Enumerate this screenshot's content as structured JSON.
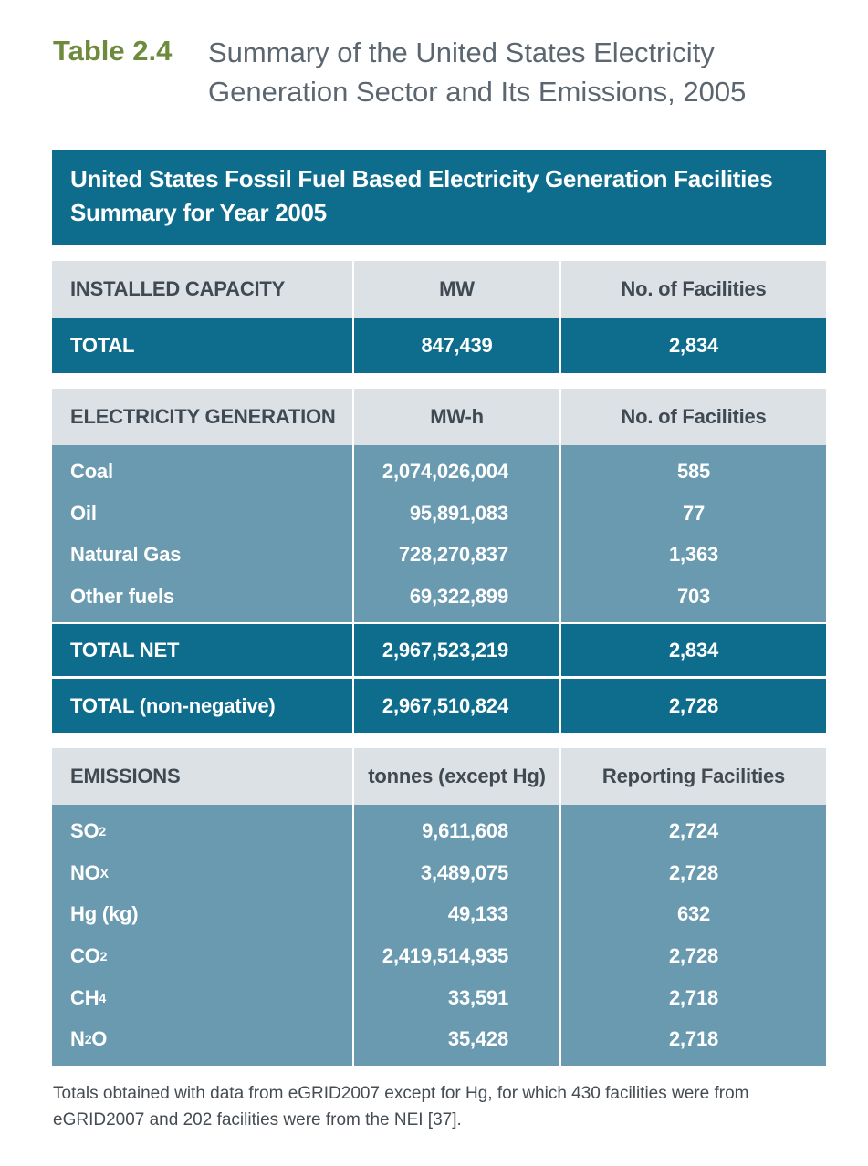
{
  "caption": {
    "label": "Table 2.4",
    "title": "Summary of the United States Electricity Generation Sector and Its Emissions, 2005"
  },
  "banner": "United States Fossil Fuel Based Electricity Generation Facilities Summary for Year 2005",
  "capacity": {
    "header": [
      "INSTALLED CAPACITY",
      "MW",
      "No. of Facilities"
    ],
    "total": [
      "TOTAL",
      "847,439",
      "2,834"
    ]
  },
  "generation": {
    "header": [
      "ELECTRICITY GENERATION",
      "MW-h",
      "No. of Facilities"
    ],
    "rows": [
      [
        "Coal",
        "2,074,026,004",
        "585"
      ],
      [
        "Oil",
        "95,891,083",
        "77"
      ],
      [
        "Natural Gas",
        "728,270,837",
        "1,363"
      ],
      [
        "Other fuels",
        "69,322,899",
        "703"
      ]
    ],
    "total_net": [
      "TOTAL NET",
      "2,967,523,219",
      "2,834"
    ],
    "total_nonneg": [
      "TOTAL (non-negative)",
      "2,967,510,824",
      "2,728"
    ]
  },
  "emissions": {
    "header": [
      "EMISSIONS",
      "tonnes (except Hg)",
      "Reporting Facilities"
    ],
    "rows": [
      {
        "base": "SO",
        "sub": "2",
        "value": "9,611,608",
        "facilities": "2,724"
      },
      {
        "base": "NO",
        "sub": "X",
        "value": "3,489,075",
        "facilities": "2,728"
      },
      {
        "base": "Hg (kg)",
        "sub": "",
        "value": "49,133",
        "facilities": "632"
      },
      {
        "base": "CO",
        "sub": "2",
        "value": "2,419,514,935",
        "facilities": "2,728"
      },
      {
        "base": "CH",
        "sub": "4",
        "value": "33,591",
        "facilities": "2,718"
      },
      {
        "base": "N",
        "sub": "2",
        "tail": "O",
        "value": "35,428",
        "facilities": "2,718"
      }
    ]
  },
  "footnote": "Totals obtained with data from eGRID2007 except for Hg, for which 430 facilities were from eGRID2007 and 202 facilities were from the NEI [37]."
}
